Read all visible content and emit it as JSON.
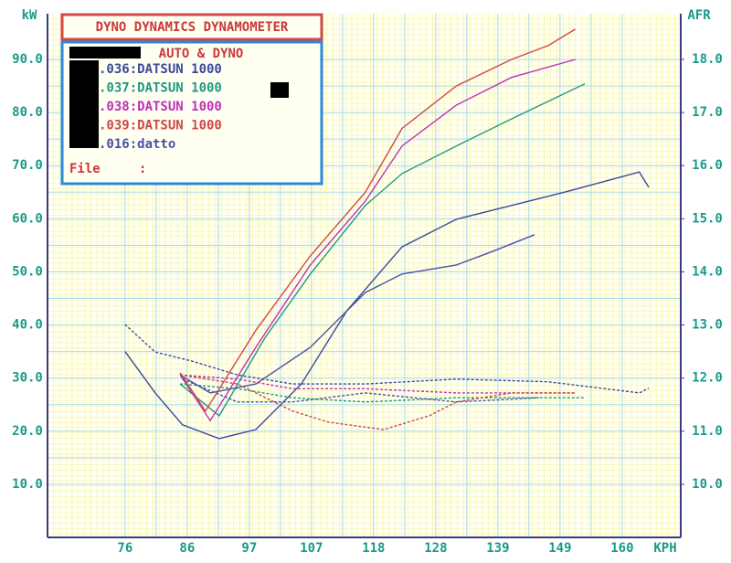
{
  "chart_data": {
    "type": "line",
    "title": "DYNO DYNAMICS DYNAMOMETER",
    "legend_title": "AUTO & DYNO",
    "file_label": "File     :",
    "ylabel": "kW",
    "y2label": "AFR",
    "xlabel": "KPH",
    "xlim": [
      62.7,
      169.7
    ],
    "xticks": [
      {
        "value": 75.8,
        "label": "76"
      },
      {
        "value": 86.3,
        "label": "86"
      },
      {
        "value": 96.8,
        "label": "97"
      },
      {
        "value": 107.3,
        "label": "107"
      },
      {
        "value": 117.8,
        "label": "118"
      },
      {
        "value": 128.3,
        "label": "128"
      },
      {
        "value": 138.8,
        "label": "139"
      },
      {
        "value": 149.3,
        "label": "149"
      },
      {
        "value": 159.8,
        "label": "160"
      }
    ],
    "ylim": [
      0,
      98.6
    ],
    "yticks": [
      {
        "value": 10,
        "label": "10.0"
      },
      {
        "value": 20,
        "label": "20.0"
      },
      {
        "value": 30,
        "label": "30.0"
      },
      {
        "value": 40,
        "label": "40.0"
      },
      {
        "value": 50,
        "label": "50.0"
      },
      {
        "value": 60,
        "label": "60.0"
      },
      {
        "value": 70,
        "label": "70.0"
      },
      {
        "value": 80,
        "label": "80.0"
      },
      {
        "value": 90,
        "label": "90.0"
      }
    ],
    "y2lim": [
      9,
      18.86
    ],
    "y2ticks": [
      {
        "value": 10,
        "label": "10.0"
      },
      {
        "value": 11,
        "label": "11.0"
      },
      {
        "value": 12,
        "label": "12.0"
      },
      {
        "value": 13,
        "label": "13.0"
      },
      {
        "value": 14,
        "label": "14.0"
      },
      {
        "value": 15,
        "label": "15.0"
      },
      {
        "value": 16,
        "label": "16.0"
      },
      {
        "value": 17,
        "label": "17.0"
      },
      {
        "value": 18,
        "label": "18.0"
      }
    ],
    "grid": true,
    "series": [
      {
        "name": ".036:DATSUN 1000",
        "color": "#3a4a9a",
        "x": [
          75.8,
          80.9,
          85.5,
          91.7,
          97.9,
          105.6,
          113.3,
          122.6,
          131.8,
          141.1,
          150.4,
          162.7,
          164.3
        ],
        "values": [
          35,
          27.2,
          21.2,
          18.6,
          20.3,
          28.9,
          42.7,
          54.7,
          59.9,
          62.5,
          65.1,
          68.8,
          65.9
        ]
      },
      {
        "name": ".037:DATSUN 1000",
        "color": "#1f9a80",
        "x": [
          85.1,
          91.7,
          99.4,
          107.1,
          116.4,
          122.6,
          131.8,
          141.1,
          153.5
        ],
        "values": [
          28.9,
          22.9,
          37.5,
          49.6,
          62.5,
          68.5,
          73.7,
          78.8,
          85.4
        ]
      },
      {
        "name": ".038:DATSUN 1000",
        "color": "#c030b8",
        "x": [
          85.1,
          90.2,
          97.9,
          107.1,
          116.4,
          122.6,
          131.8,
          141.1,
          151.9
        ],
        "values": [
          30.6,
          22,
          35.8,
          51.3,
          63.3,
          73.7,
          81.4,
          86.6,
          90
        ]
      },
      {
        "name": ".039:DATSUN 1000",
        "color": "#d04848",
        "x": [
          85.1,
          89.4,
          97.9,
          107.1,
          116.4,
          122.6,
          131.8,
          141.1,
          147.3,
          151.9
        ],
        "values": [
          31,
          23.8,
          39,
          53,
          65,
          77,
          85,
          90,
          92.6,
          95.7
        ]
      },
      {
        "name": ".016:datto",
        "color": "#4a50a8",
        "x": [
          85.1,
          90.2,
          97.9,
          107.1,
          116.4,
          122.6,
          131.8,
          138,
          145
        ],
        "values": [
          30.6,
          27.2,
          28.9,
          35.8,
          46.1,
          49.6,
          51.3,
          53.9,
          57
        ]
      },
      {
        "color": "#3a4a9a",
        "axis": "y2",
        "x": [
          75.8,
          80.9,
          87.1,
          94.8,
          104.1,
          116.4,
          131.8,
          147.3,
          162.7,
          164.3
        ],
        "values": [
          13.01,
          12.49,
          12.32,
          12.06,
          11.89,
          11.89,
          11.98,
          11.93,
          11.72,
          11.81
        ]
      },
      {
        "color": "#1f9a80",
        "axis": "y2",
        "x": [
          85.1,
          94.8,
          104.1,
          116.4,
          131.8,
          153.5
        ],
        "values": [
          11.89,
          11.8,
          11.63,
          11.55,
          11.63,
          11.63
        ]
      },
      {
        "color": "#c030b8",
        "axis": "y2",
        "x": [
          85.1,
          94.8,
          104.1,
          116.4,
          131.8,
          151.9
        ],
        "values": [
          12.06,
          11.98,
          11.8,
          11.8,
          11.72,
          11.72
        ]
      },
      {
        "color": "#d04848",
        "axis": "y2",
        "x": [
          85.1,
          94.8,
          104.1,
          110.2,
          119.5,
          127.2,
          131.8,
          141.1,
          151.9
        ],
        "values": [
          12.06,
          11.89,
          11.38,
          11.17,
          11.03,
          11.29,
          11.55,
          11.72,
          11.72
        ]
      },
      {
        "color": "#4a50a8",
        "axis": "y2",
        "x": [
          85.5,
          94.8,
          104.1,
          116.4,
          131.8,
          145.7
        ],
        "values": [
          11.98,
          11.55,
          11.55,
          11.72,
          11.55,
          11.63
        ]
      }
    ]
  }
}
